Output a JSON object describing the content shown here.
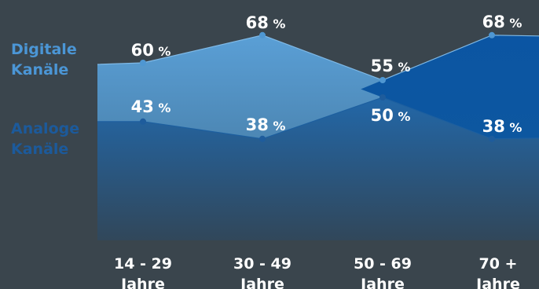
{
  "chart_data": {
    "type": "area",
    "categories": [
      "14 - 29\nJahre",
      "30 - 49\nJahre",
      "50 - 69\nJahre",
      "70 +\nJahre"
    ],
    "series": [
      {
        "name": "Digitale\nKanäle",
        "values": [
          60,
          68,
          55,
          68
        ],
        "color": "#4a90c8",
        "label_color": "#4b96d6"
      },
      {
        "name": "Analoge\nKanäle",
        "values": [
          43,
          38,
          50,
          38
        ],
        "color": "#1f5f9f",
        "label_color": "#1c5a9b"
      }
    ],
    "value_suffix": " %",
    "ylim": [
      0,
      100
    ],
    "grid": false,
    "legend": "left"
  },
  "colors": {
    "background": "#3a454d",
    "crossover_fill": "#0d5aa8",
    "label_text": "#ffffff"
  }
}
